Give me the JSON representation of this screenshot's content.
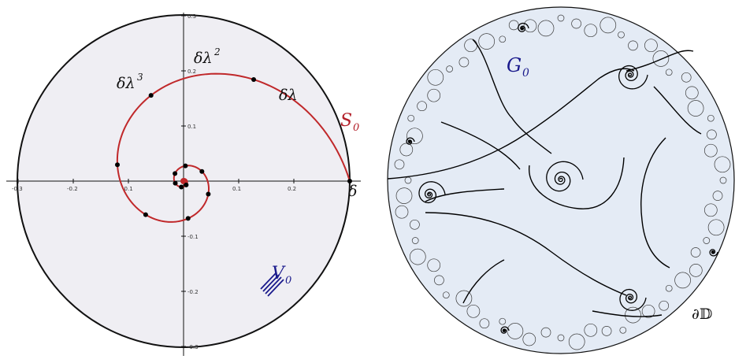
{
  "left_panel": {
    "ticks": {
      "x_labels": [
        "-0.3",
        "-0.2",
        "-0.1",
        "0.1",
        "0.2"
      ],
      "y_labels": [
        "0.3",
        "0.2",
        "0.1",
        "-0.1",
        "-0.2",
        "-0.3"
      ]
    },
    "labels": {
      "delta": "δ",
      "delta_lambda": "δλ",
      "delta_lambda2_base": "δλ",
      "delta_lambda2_exp": "2",
      "delta_lambda3_base": "δλ",
      "delta_lambda3_exp": "3",
      "S0_base": "S",
      "S0_sub": "0",
      "V0_base": "V",
      "V0_sub": "0"
    },
    "colors": {
      "disk_fill": "#efeef3",
      "spiral": "#c0282a",
      "S0_label": "#b3202a",
      "V0_label": "#1a1a8c",
      "points": "#000000"
    }
  },
  "right_panel": {
    "labels": {
      "G0_base": "G",
      "G0_sub": "0",
      "boundary": "∂𝔻"
    },
    "colors": {
      "disk_fill": "#e4ebf5",
      "G0_label": "#1a1a8c",
      "curves": "#000000"
    }
  }
}
